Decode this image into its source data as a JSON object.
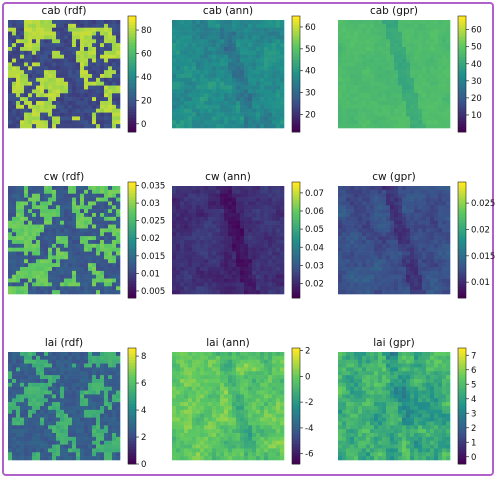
{
  "figure": {
    "border_color": "#b060c8",
    "colormap": [
      "#440154",
      "#3b528b",
      "#21918c",
      "#5ec962",
      "#fde725"
    ]
  },
  "chart_data": [
    {
      "type": "heatmap",
      "title": "cab (rdf)",
      "colorbar_ticks": [
        0,
        20,
        40,
        60,
        80
      ],
      "clim": [
        -7,
        92
      ],
      "dominant_value": 80,
      "background_value": 15,
      "texture": "rdf"
    },
    {
      "type": "heatmap",
      "title": "cab (ann)",
      "colorbar_ticks": [
        20,
        30,
        40,
        50,
        60
      ],
      "clim": [
        12,
        65
      ],
      "dominant_value": 40,
      "background_value": 35,
      "texture": "smooth"
    },
    {
      "type": "heatmap",
      "title": "cab (gpr)",
      "colorbar_ticks": [
        10,
        20,
        30,
        40,
        50,
        60
      ],
      "clim": [
        0,
        68
      ],
      "dominant_value": 45,
      "background_value": 48,
      "texture": "smooth"
    },
    {
      "type": "heatmap",
      "title": "cw (rdf)",
      "colorbar_ticks": [
        0.005,
        0.01,
        0.015,
        0.02,
        0.025,
        0.03,
        0.035
      ],
      "clim": [
        0.003,
        0.036
      ],
      "dominant_value": 0.028,
      "background_value": 0.012,
      "texture": "rdf"
    },
    {
      "type": "heatmap",
      "title": "cw (ann)",
      "colorbar_ticks": [
        0.02,
        0.03,
        0.04,
        0.05,
        0.06,
        0.07
      ],
      "clim": [
        0.012,
        0.076
      ],
      "dominant_value": 0.022,
      "background_value": 0.02,
      "texture": "smooth"
    },
    {
      "type": "heatmap",
      "title": "cw (gpr)",
      "colorbar_ticks": [
        0.01,
        0.015,
        0.02,
        0.025
      ],
      "clim": [
        0.007,
        0.029
      ],
      "dominant_value": 0.013,
      "background_value": 0.012,
      "texture": "smooth"
    },
    {
      "type": "heatmap",
      "title": "lai (rdf)",
      "colorbar_ticks": [
        0,
        2,
        4,
        6,
        8
      ],
      "clim": [
        0,
        8.6
      ],
      "dominant_value": 5.5,
      "background_value": 2.5,
      "texture": "rdf"
    },
    {
      "type": "heatmap",
      "title": "lai (ann)",
      "colorbar_ticks": [
        -6,
        -4,
        -2,
        0,
        2
      ],
      "clim": [
        -6.8,
        2.2
      ],
      "dominant_value": 0.5,
      "background_value": -1,
      "texture": "smooth"
    },
    {
      "type": "heatmap",
      "title": "lai (gpr)",
      "colorbar_ticks": [
        0,
        1,
        2,
        3,
        4,
        5,
        6,
        7
      ],
      "clim": [
        -0.5,
        7.5
      ],
      "dominant_value": 5.5,
      "background_value": 3.5,
      "texture": "smooth"
    }
  ]
}
